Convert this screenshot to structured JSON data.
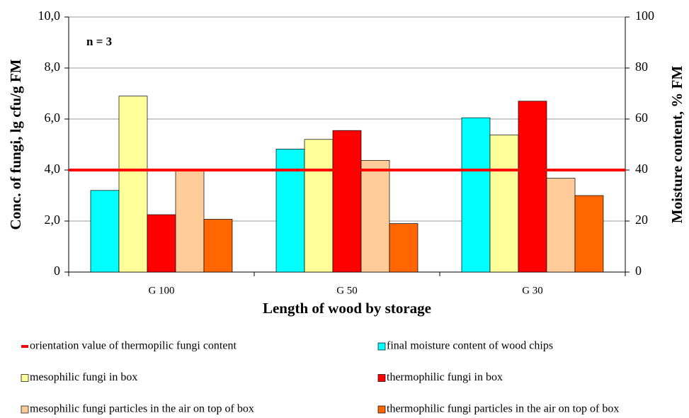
{
  "chart_data": {
    "type": "bar",
    "categories": [
      "G 100",
      "G 50",
      "G 30"
    ],
    "xlabel": "Length of wood by storage",
    "ylabel": "Conc. of fungi, lg cfu/g FM",
    "y2label": "Moisture content, % FM",
    "annotation": "n = 3",
    "ylim": [
      0,
      10
    ],
    "yticks": [
      0,
      {
        "value": 2,
        "label": "2,0"
      },
      {
        "value": 4,
        "label": "4,0"
      },
      {
        "value": 6,
        "label": "6,0"
      },
      {
        "value": 8,
        "label": "8,0"
      },
      {
        "value": 10,
        "label": "10,0"
      }
    ],
    "y2lim": [
      0,
      100
    ],
    "y2ticks": [
      0,
      20,
      40,
      60,
      80,
      100
    ],
    "grid": true,
    "reference_line": {
      "name": "orientation value of thermopilic fungi content",
      "value": 4,
      "color": "#ff0000"
    },
    "series": [
      {
        "name": "final moisture content of wood chips",
        "color": "#00ffff",
        "axis": "y2",
        "values": [
          32,
          48.2,
          60.5
        ]
      },
      {
        "name": "mesophilic fungi in box",
        "color": "#ffff99",
        "values": [
          6.9,
          5.2,
          5.37
        ]
      },
      {
        "name": "thermophilic fungi in box",
        "color": "#ff0000",
        "values": [
          2.25,
          5.55,
          6.7
        ]
      },
      {
        "name": "mesophilic fungi particles in the air on top of box",
        "color": "#ffcc99",
        "values": [
          4.0,
          4.38,
          3.68
        ]
      },
      {
        "name": "thermophilic fungi particles in the air on top of box",
        "color": "#ff6600",
        "values": [
          2.07,
          1.9,
          3.0
        ]
      }
    ]
  }
}
